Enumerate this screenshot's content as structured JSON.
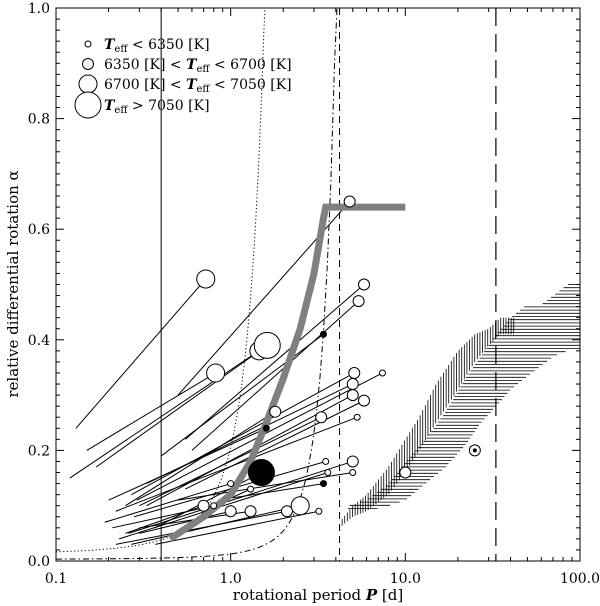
{
  "chart_data": {
    "type": "scatter",
    "xscale": "log",
    "xlim": [
      0.1,
      100.0
    ],
    "ylim": [
      0.0,
      1.0
    ],
    "xlabel_prefix": "rotational period ",
    "xlabel_var": "P",
    "xlabel_unit": " [d]",
    "ylabel": "relative differential rotation α",
    "xtick_labels": [
      "0.1",
      "1.0",
      "10.0",
      "100.0"
    ],
    "xtick_values": [
      0.1,
      1.0,
      10.0,
      100.0
    ],
    "ytick_labels": [
      "0.0",
      "0.2",
      "0.4",
      "0.6",
      "0.8",
      "1.0"
    ],
    "ytick_values": [
      0.0,
      0.2,
      0.4,
      0.6,
      0.8,
      1.0
    ],
    "legend": {
      "placement": "top-left",
      "entries": [
        {
          "size": 1,
          "parts": [
            {
              "t": "T",
              "s": "var"
            },
            {
              "t": "eff",
              "s": "sub"
            },
            {
              "t": " < 6350 [K]",
              "s": "plain"
            }
          ]
        },
        {
          "size": 2,
          "parts": [
            {
              "t": "6350 [K] < ",
              "s": "plain"
            },
            {
              "t": "T",
              "s": "var"
            },
            {
              "t": "eff",
              "s": "sub"
            },
            {
              "t": " < 6700 [K]",
              "s": "plain"
            }
          ]
        },
        {
          "size": 3,
          "parts": [
            {
              "t": "6700 [K] < ",
              "s": "plain"
            },
            {
              "t": "T",
              "s": "var"
            },
            {
              "t": "eff",
              "s": "sub"
            },
            {
              "t": " < 7050 [K]",
              "s": "plain"
            }
          ]
        },
        {
          "size": 4,
          "parts": [
            {
              "t": "T",
              "s": "var"
            },
            {
              "t": "eff",
              "s": "sub"
            },
            {
              "t": " > 7050 [K]",
              "s": "plain"
            }
          ]
        }
      ]
    },
    "vertical_lines": [
      {
        "x": 0.4,
        "style": "solid"
      },
      {
        "x": 4.2,
        "style": "short-dash"
      },
      {
        "x": 33.0,
        "style": "long-dash"
      }
    ],
    "thick_gray_curve": [
      [
        0.45,
        0.04
      ],
      [
        0.7,
        0.08
      ],
      [
        1.0,
        0.12
      ],
      [
        1.3,
        0.18
      ],
      [
        1.6,
        0.25
      ],
      [
        2.0,
        0.33
      ],
      [
        2.5,
        0.42
      ],
      [
        3.0,
        0.52
      ],
      [
        3.4,
        0.62
      ],
      [
        3.5,
        0.64
      ],
      [
        3.7,
        0.64
      ],
      [
        10.0,
        0.64
      ]
    ],
    "dotted_curve": {
      "a0": 0.0125,
      "b": 2.8,
      "x_from": 0.1,
      "x_to": 7.6
    },
    "dashdot_curve": {
      "a0": 0.003,
      "b": 1.45,
      "x_from": 0.1,
      "x_to": 33.0
    },
    "vertical_hatch_band": [
      [
        4.2,
        0.06,
        0.07
      ],
      [
        5.0,
        0.08,
        0.1
      ],
      [
        6.0,
        0.09,
        0.12
      ],
      [
        8.0,
        0.12,
        0.17
      ],
      [
        10.0,
        0.16,
        0.22
      ],
      [
        12.0,
        0.2,
        0.26
      ],
      [
        15.0,
        0.25,
        0.32
      ],
      [
        20.0,
        0.31,
        0.38
      ],
      [
        25.0,
        0.36,
        0.41
      ],
      [
        30.0,
        0.39,
        0.42
      ],
      [
        35.0,
        0.41,
        0.44
      ],
      [
        42.0,
        0.41,
        0.44
      ]
    ],
    "horizontal_hatch_band": [
      [
        4.7,
        0.09,
        0.1
      ],
      [
        6.0,
        0.09,
        0.11
      ],
      [
        8.0,
        0.1,
        0.14
      ],
      [
        10.0,
        0.11,
        0.18
      ],
      [
        13.0,
        0.14,
        0.22
      ],
      [
        17.0,
        0.17,
        0.27
      ],
      [
        22.0,
        0.21,
        0.33
      ],
      [
        27.0,
        0.25,
        0.37
      ],
      [
        33.0,
        0.28,
        0.41
      ],
      [
        40.0,
        0.31,
        0.44
      ],
      [
        48.0,
        0.33,
        0.46
      ],
      [
        58.0,
        0.35,
        0.46
      ],
      [
        70.0,
        0.37,
        0.48
      ],
      [
        85.0,
        0.38,
        0.5
      ],
      [
        100.0,
        0.38,
        0.5
      ]
    ],
    "stars": [
      {
        "p": 0.72,
        "a": 0.51,
        "size": 3,
        "filled": false,
        "x0": 0.13,
        "y0": 0.24
      },
      {
        "p": 1.45,
        "a": 0.38,
        "size": 3,
        "filled": false,
        "x0": 0.12,
        "y0": 0.15
      },
      {
        "p": 1.62,
        "a": 0.39,
        "size": 4,
        "filled": false,
        "x0": 0.17,
        "y0": 0.17
      },
      {
        "p": 0.82,
        "a": 0.34,
        "size": 3,
        "filled": false,
        "x0": 0.15,
        "y0": 0.2
      },
      {
        "p": 3.4,
        "a": 0.41,
        "size": 1,
        "filled": true,
        "x0": 0.4,
        "y0": 0.19
      },
      {
        "p": 4.8,
        "a": 0.65,
        "size": 2,
        "filled": false,
        "x0": 0.5,
        "y0": 0.3
      },
      {
        "p": 5.8,
        "a": 0.5,
        "size": 2,
        "filled": false,
        "x0": 0.55,
        "y0": 0.22
      },
      {
        "p": 5.4,
        "a": 0.47,
        "size": 2,
        "filled": false,
        "x0": 0.6,
        "y0": 0.2
      },
      {
        "p": 5.1,
        "a": 0.34,
        "size": 2,
        "filled": false,
        "x0": 0.27,
        "y0": 0.12
      },
      {
        "p": 7.4,
        "a": 0.34,
        "size": 1,
        "filled": false,
        "x0": 0.29,
        "y0": 0.11
      },
      {
        "p": 5.0,
        "a": 0.32,
        "size": 2,
        "filled": false,
        "x0": 0.33,
        "y0": 0.14
      },
      {
        "p": 5.0,
        "a": 0.3,
        "size": 2,
        "filled": false,
        "x0": 0.33,
        "y0": 0.1
      },
      {
        "p": 5.8,
        "a": 0.29,
        "size": 2,
        "filled": false,
        "x0": 0.55,
        "y0": 0.13
      },
      {
        "p": 1.8,
        "a": 0.27,
        "size": 2,
        "filled": false,
        "x0": 0.25,
        "y0": 0.1
      },
      {
        "p": 3.3,
        "a": 0.26,
        "size": 2,
        "filled": false,
        "x0": 0.3,
        "y0": 0.1
      },
      {
        "p": 5.3,
        "a": 0.26,
        "size": 1,
        "filled": false,
        "x0": 0.22,
        "y0": 0.09
      },
      {
        "p": 1.6,
        "a": 0.24,
        "size": 1,
        "filled": true,
        "x0": 0.2,
        "y0": 0.11
      },
      {
        "p": 3.5,
        "a": 0.18,
        "size": 1,
        "filled": false,
        "x0": 0.28,
        "y0": 0.08
      },
      {
        "p": 5.0,
        "a": 0.18,
        "size": 2,
        "filled": false,
        "x0": 0.26,
        "y0": 0.05
      },
      {
        "p": 1.5,
        "a": 0.16,
        "size": 4,
        "filled": true,
        "x0": 0.37,
        "y0": 0.06
      },
      {
        "p": 3.6,
        "a": 0.16,
        "size": 1,
        "filled": false,
        "x0": 0.23,
        "y0": 0.04
      },
      {
        "p": 5.0,
        "a": 0.16,
        "size": 1,
        "filled": false,
        "x0": 0.5,
        "y0": 0.11
      },
      {
        "p": 3.4,
        "a": 0.14,
        "size": 1,
        "filled": true,
        "x0": 0.85,
        "y0": 0.11
      },
      {
        "p": 1.0,
        "a": 0.14,
        "size": 1,
        "filled": false,
        "x0": 0.19,
        "y0": 0.07
      },
      {
        "p": 1.3,
        "a": 0.13,
        "size": 1,
        "filled": false,
        "x0": 0.8,
        "y0": 0.1
      },
      {
        "p": 0.8,
        "a": 0.1,
        "size": 1,
        "filled": false,
        "x0": 0.21,
        "y0": 0.06
      },
      {
        "p": 0.7,
        "a": 0.1,
        "size": 2,
        "filled": false,
        "x0": 0.25,
        "y0": 0.05
      },
      {
        "p": 1.0,
        "a": 0.09,
        "size": 2,
        "filled": false,
        "x0": 0.3,
        "y0": 0.05
      },
      {
        "p": 1.3,
        "a": 0.09,
        "size": 2,
        "filled": false,
        "x0": 0.3,
        "y0": 0.06
      },
      {
        "p": 2.1,
        "a": 0.09,
        "size": 2,
        "filled": false,
        "x0": 0.22,
        "y0": 0.03
      },
      {
        "p": 2.5,
        "a": 0.1,
        "size": 3,
        "filled": false,
        "x0": 0.27,
        "y0": 0.03
      },
      {
        "p": 3.2,
        "a": 0.09,
        "size": 1,
        "filled": false,
        "x0": 0.37,
        "y0": 0.03
      },
      {
        "p": 10.0,
        "a": 0.16,
        "size": 2,
        "filled": false
      },
      {
        "p": 25.0,
        "a": 0.2,
        "size": 2,
        "filled": false,
        "dot": true
      }
    ]
  }
}
